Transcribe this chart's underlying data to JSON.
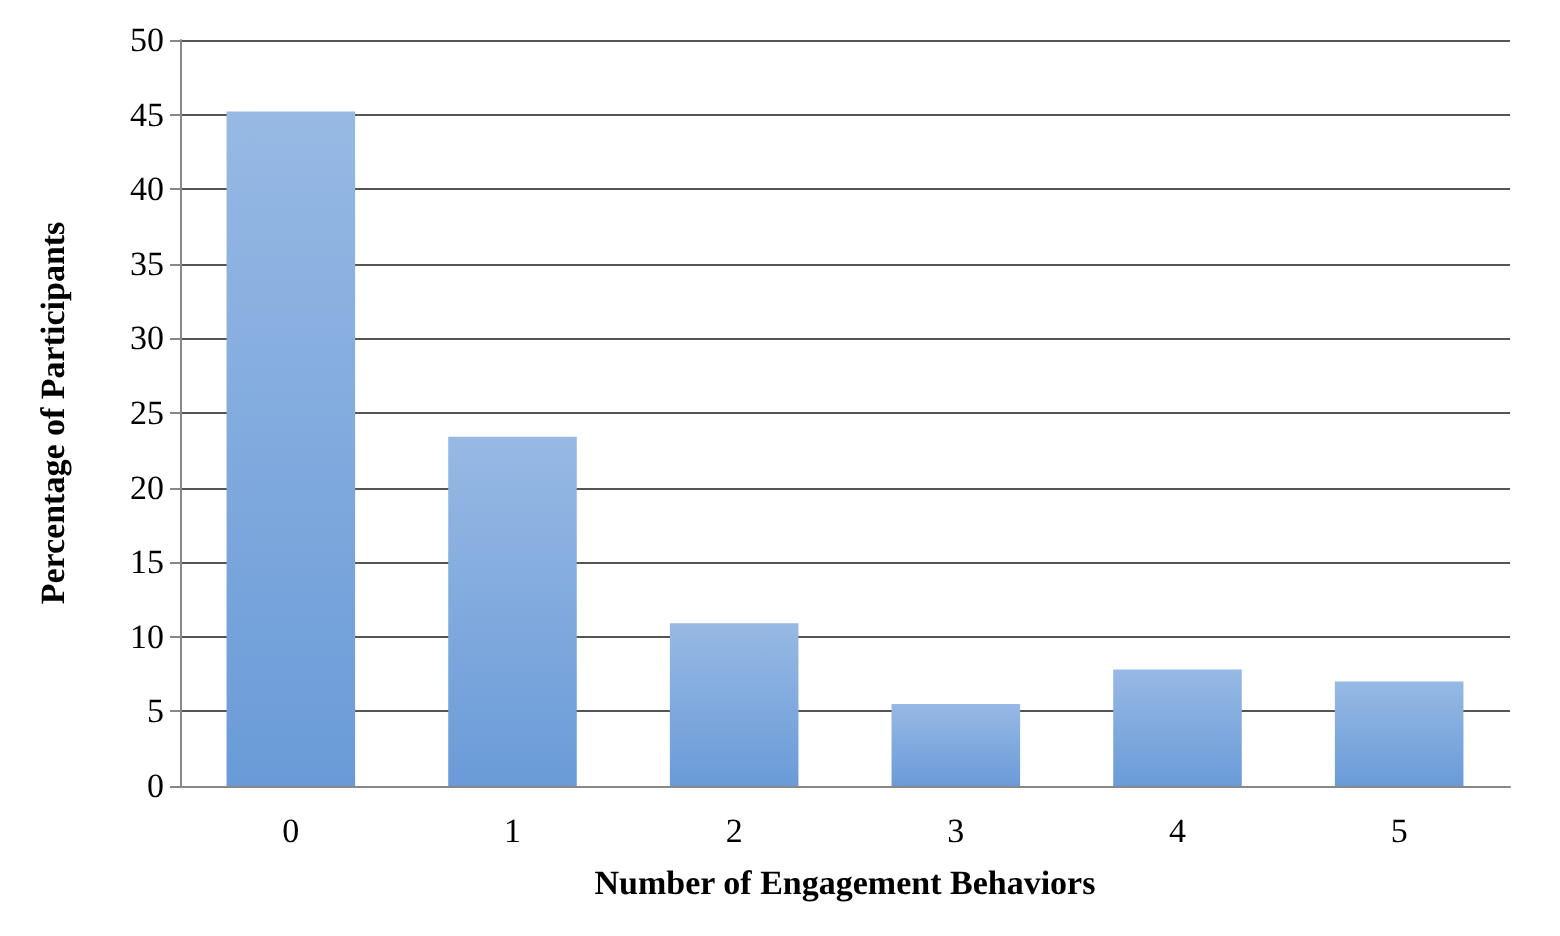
{
  "chart_data": {
    "type": "bar",
    "xlabel": "Number of Engagement Behaviors",
    "ylabel": "Percentage of Participants",
    "categories": [
      "0",
      "1",
      "2",
      "3",
      "4",
      "5"
    ],
    "values": [
      45.2,
      23.4,
      10.9,
      5.5,
      7.8,
      7.0
    ],
    "color": "#6a9bd8",
    "ylim": [
      0,
      50
    ],
    "yticks": [
      0,
      5,
      10,
      15,
      20,
      25,
      30,
      35,
      40,
      45,
      50
    ],
    "grid": "y"
  }
}
